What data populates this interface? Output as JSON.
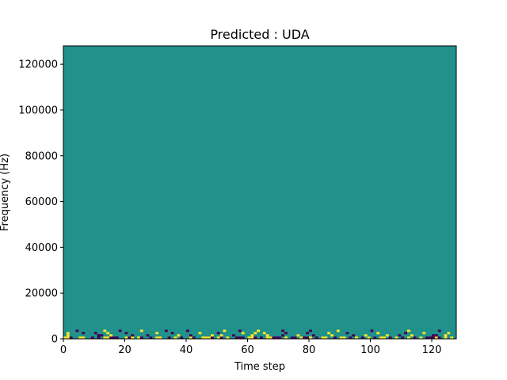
{
  "chart_data": {
    "type": "heatmap",
    "title": "Predicted : UDA",
    "xlabel": "Time step",
    "ylabel": "Frequency (Hz)",
    "xlim": [
      0,
      128
    ],
    "ylim": [
      0,
      128000
    ],
    "x_ticks": [
      0,
      20,
      40,
      60,
      80,
      100,
      120
    ],
    "y_ticks": [
      0,
      20000,
      40000,
      60000,
      80000,
      100000,
      120000
    ],
    "x_tick_labels": [
      "0",
      "20",
      "40",
      "60",
      "80",
      "100",
      "120"
    ],
    "y_tick_labels": [
      "0",
      "20000",
      "40000",
      "60000",
      "80000",
      "100000",
      "120000"
    ],
    "grid": false,
    "colormap": "viridis",
    "colors": {
      "background": "#21918c",
      "low": "#440154",
      "high": "#fde725"
    },
    "cells": [
      {
        "x": 0,
        "y": 0,
        "v": "high"
      },
      {
        "x": 1,
        "y": 0,
        "v": "high"
      },
      {
        "x": 2,
        "y": 0,
        "v": "low"
      },
      {
        "x": 5,
        "y": 0,
        "v": "high"
      },
      {
        "x": 6,
        "y": 0,
        "v": "high"
      },
      {
        "x": 9,
        "y": 0,
        "v": "low"
      },
      {
        "x": 11,
        "y": 0,
        "v": "low"
      },
      {
        "x": 13,
        "y": 0,
        "v": "high"
      },
      {
        "x": 14,
        "y": 0,
        "v": "high"
      },
      {
        "x": 15,
        "y": 0,
        "v": "low"
      },
      {
        "x": 16,
        "y": 0,
        "v": "low"
      },
      {
        "x": 17,
        "y": 0,
        "v": "low"
      },
      {
        "x": 20,
        "y": 0,
        "v": "high"
      },
      {
        "x": 21,
        "y": 0,
        "v": "low"
      },
      {
        "x": 22,
        "y": 0,
        "v": "high"
      },
      {
        "x": 24,
        "y": 0,
        "v": "high"
      },
      {
        "x": 25,
        "y": 0,
        "v": "low"
      },
      {
        "x": 28,
        "y": 0,
        "v": "low"
      },
      {
        "x": 30,
        "y": 0,
        "v": "high"
      },
      {
        "x": 31,
        "y": 0,
        "v": "high"
      },
      {
        "x": 34,
        "y": 0,
        "v": "low"
      },
      {
        "x": 36,
        "y": 0,
        "v": "high"
      },
      {
        "x": 38,
        "y": 0,
        "v": "low"
      },
      {
        "x": 41,
        "y": 0,
        "v": "high"
      },
      {
        "x": 42,
        "y": 0,
        "v": "low"
      },
      {
        "x": 45,
        "y": 0,
        "v": "high"
      },
      {
        "x": 46,
        "y": 0,
        "v": "high"
      },
      {
        "x": 47,
        "y": 0,
        "v": "high"
      },
      {
        "x": 48,
        "y": 0,
        "v": "low"
      },
      {
        "x": 50,
        "y": 0,
        "v": "high"
      },
      {
        "x": 51,
        "y": 0,
        "v": "low"
      },
      {
        "x": 53,
        "y": 0,
        "v": "high"
      },
      {
        "x": 56,
        "y": 0,
        "v": "low"
      },
      {
        "x": 57,
        "y": 0,
        "v": "low"
      },
      {
        "x": 58,
        "y": 0,
        "v": "low"
      },
      {
        "x": 60,
        "y": 0,
        "v": "high"
      },
      {
        "x": 61,
        "y": 0,
        "v": "high"
      },
      {
        "x": 62,
        "y": 0,
        "v": "low"
      },
      {
        "x": 64,
        "y": 0,
        "v": "low"
      },
      {
        "x": 66,
        "y": 0,
        "v": "high"
      },
      {
        "x": 67,
        "y": 0,
        "v": "high"
      },
      {
        "x": 68,
        "y": 0,
        "v": "low"
      },
      {
        "x": 69,
        "y": 0,
        "v": "low"
      },
      {
        "x": 70,
        "y": 0,
        "v": "low"
      },
      {
        "x": 72,
        "y": 0,
        "v": "high"
      },
      {
        "x": 74,
        "y": 0,
        "v": "low"
      },
      {
        "x": 75,
        "y": 0,
        "v": "low"
      },
      {
        "x": 77,
        "y": 0,
        "v": "high"
      },
      {
        "x": 78,
        "y": 0,
        "v": "low"
      },
      {
        "x": 79,
        "y": 0,
        "v": "low"
      },
      {
        "x": 80,
        "y": 0,
        "v": "high"
      },
      {
        "x": 82,
        "y": 0,
        "v": "low"
      },
      {
        "x": 84,
        "y": 0,
        "v": "high"
      },
      {
        "x": 85,
        "y": 0,
        "v": "high"
      },
      {
        "x": 88,
        "y": 0,
        "v": "low"
      },
      {
        "x": 90,
        "y": 0,
        "v": "high"
      },
      {
        "x": 91,
        "y": 0,
        "v": "high"
      },
      {
        "x": 93,
        "y": 0,
        "v": "low"
      },
      {
        "x": 95,
        "y": 0,
        "v": "high"
      },
      {
        "x": 97,
        "y": 0,
        "v": "low"
      },
      {
        "x": 99,
        "y": 0,
        "v": "high"
      },
      {
        "x": 101,
        "y": 0,
        "v": "low"
      },
      {
        "x": 103,
        "y": 0,
        "v": "high"
      },
      {
        "x": 104,
        "y": 0,
        "v": "high"
      },
      {
        "x": 106,
        "y": 0,
        "v": "low"
      },
      {
        "x": 108,
        "y": 0,
        "v": "high"
      },
      {
        "x": 110,
        "y": 0,
        "v": "low"
      },
      {
        "x": 112,
        "y": 0,
        "v": "high"
      },
      {
        "x": 114,
        "y": 0,
        "v": "low"
      },
      {
        "x": 116,
        "y": 0,
        "v": "high"
      },
      {
        "x": 118,
        "y": 0,
        "v": "low"
      },
      {
        "x": 119,
        "y": 0,
        "v": "low"
      },
      {
        "x": 120,
        "y": 0,
        "v": "low"
      },
      {
        "x": 121,
        "y": 0,
        "v": "high"
      },
      {
        "x": 122,
        "y": 0,
        "v": "low"
      },
      {
        "x": 124,
        "y": 0,
        "v": "high"
      },
      {
        "x": 126,
        "y": 0,
        "v": "high"
      },
      {
        "x": 1,
        "y": 1,
        "v": "high"
      },
      {
        "x": 11,
        "y": 1,
        "v": "low"
      },
      {
        "x": 12,
        "y": 1,
        "v": "low"
      },
      {
        "x": 15,
        "y": 1,
        "v": "high"
      },
      {
        "x": 22,
        "y": 1,
        "v": "low"
      },
      {
        "x": 27,
        "y": 1,
        "v": "low"
      },
      {
        "x": 37,
        "y": 1,
        "v": "high"
      },
      {
        "x": 41,
        "y": 1,
        "v": "low"
      },
      {
        "x": 48,
        "y": 1,
        "v": "high"
      },
      {
        "x": 51,
        "y": 1,
        "v": "high"
      },
      {
        "x": 55,
        "y": 1,
        "v": "low"
      },
      {
        "x": 61,
        "y": 1,
        "v": "high"
      },
      {
        "x": 66,
        "y": 1,
        "v": "high"
      },
      {
        "x": 71,
        "y": 1,
        "v": "low"
      },
      {
        "x": 76,
        "y": 1,
        "v": "high"
      },
      {
        "x": 81,
        "y": 1,
        "v": "low"
      },
      {
        "x": 87,
        "y": 1,
        "v": "high"
      },
      {
        "x": 94,
        "y": 1,
        "v": "low"
      },
      {
        "x": 98,
        "y": 1,
        "v": "high"
      },
      {
        "x": 105,
        "y": 1,
        "v": "high"
      },
      {
        "x": 109,
        "y": 1,
        "v": "low"
      },
      {
        "x": 113,
        "y": 1,
        "v": "high"
      },
      {
        "x": 120,
        "y": 1,
        "v": "low"
      },
      {
        "x": 121,
        "y": 1,
        "v": "low"
      },
      {
        "x": 124,
        "y": 1,
        "v": "high"
      },
      {
        "x": 1,
        "y": 2,
        "v": "high"
      },
      {
        "x": 6,
        "y": 2,
        "v": "low"
      },
      {
        "x": 10,
        "y": 2,
        "v": "low"
      },
      {
        "x": 14,
        "y": 2,
        "v": "high"
      },
      {
        "x": 20,
        "y": 2,
        "v": "low"
      },
      {
        "x": 30,
        "y": 2,
        "v": "high"
      },
      {
        "x": 35,
        "y": 2,
        "v": "low"
      },
      {
        "x": 44,
        "y": 2,
        "v": "high"
      },
      {
        "x": 50,
        "y": 2,
        "v": "low"
      },
      {
        "x": 58,
        "y": 2,
        "v": "high"
      },
      {
        "x": 62,
        "y": 2,
        "v": "high"
      },
      {
        "x": 65,
        "y": 2,
        "v": "high"
      },
      {
        "x": 72,
        "y": 2,
        "v": "low"
      },
      {
        "x": 79,
        "y": 2,
        "v": "low"
      },
      {
        "x": 86,
        "y": 2,
        "v": "high"
      },
      {
        "x": 92,
        "y": 2,
        "v": "low"
      },
      {
        "x": 102,
        "y": 2,
        "v": "high"
      },
      {
        "x": 111,
        "y": 2,
        "v": "low"
      },
      {
        "x": 117,
        "y": 2,
        "v": "high"
      },
      {
        "x": 125,
        "y": 2,
        "v": "high"
      },
      {
        "x": 4,
        "y": 3,
        "v": "low"
      },
      {
        "x": 13,
        "y": 3,
        "v": "high"
      },
      {
        "x": 18,
        "y": 3,
        "v": "low"
      },
      {
        "x": 25,
        "y": 3,
        "v": "high"
      },
      {
        "x": 33,
        "y": 3,
        "v": "low"
      },
      {
        "x": 40,
        "y": 3,
        "v": "low"
      },
      {
        "x": 52,
        "y": 3,
        "v": "high"
      },
      {
        "x": 57,
        "y": 3,
        "v": "low"
      },
      {
        "x": 63,
        "y": 3,
        "v": "high"
      },
      {
        "x": 71,
        "y": 3,
        "v": "low"
      },
      {
        "x": 80,
        "y": 3,
        "v": "low"
      },
      {
        "x": 89,
        "y": 3,
        "v": "high"
      },
      {
        "x": 100,
        "y": 3,
        "v": "low"
      },
      {
        "x": 112,
        "y": 3,
        "v": "high"
      },
      {
        "x": 122,
        "y": 3,
        "v": "low"
      }
    ]
  }
}
